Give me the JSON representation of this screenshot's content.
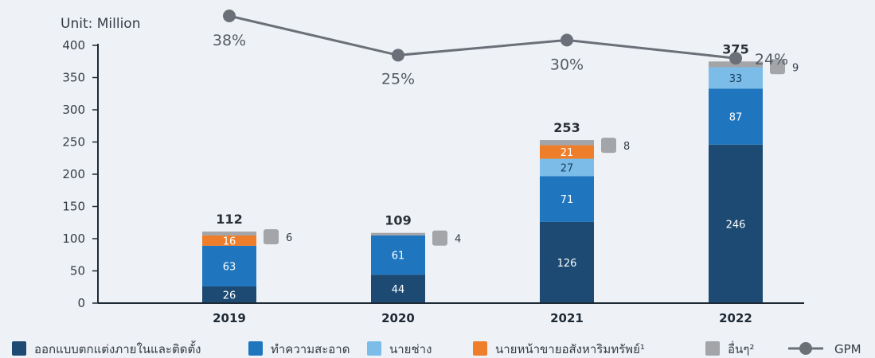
{
  "chart_data": {
    "type": "bar",
    "stacked": true,
    "unit_label": "Unit: Million",
    "categories": [
      "2019",
      "2020",
      "2021",
      "2022"
    ],
    "ylim": [
      0,
      400
    ],
    "yticks": [
      0,
      50,
      100,
      150,
      200,
      250,
      300,
      350,
      400
    ],
    "series": [
      {
        "name": "ออกแบบตกแต่งภายในและติดตั้ง",
        "color": "#1c4a72",
        "values": [
          26,
          44,
          126,
          246
        ]
      },
      {
        "name": "ทำความสะอาด",
        "color": "#1f76bf",
        "values": [
          63,
          61,
          71,
          87
        ]
      },
      {
        "name": "นายช่าง",
        "color": "#7bbde8",
        "values": [
          0,
          0,
          27,
          33
        ]
      },
      {
        "name": "นายหน้าขายอสังหาริมทรัพย์¹",
        "color": "#ee7e2a",
        "values": [
          16,
          0,
          21,
          0
        ]
      },
      {
        "name": "อื่นๆ²",
        "color": "#a3a5a8",
        "values": [
          6,
          4,
          8,
          9
        ]
      }
    ],
    "totals": [
      "112",
      "109",
      "253",
      "375"
    ],
    "gpm": {
      "name": "GPM",
      "color": "#6b7078",
      "values": [
        38,
        25,
        30,
        24
      ],
      "labels": [
        "38%",
        "25%",
        "30%",
        "24%"
      ]
    }
  }
}
